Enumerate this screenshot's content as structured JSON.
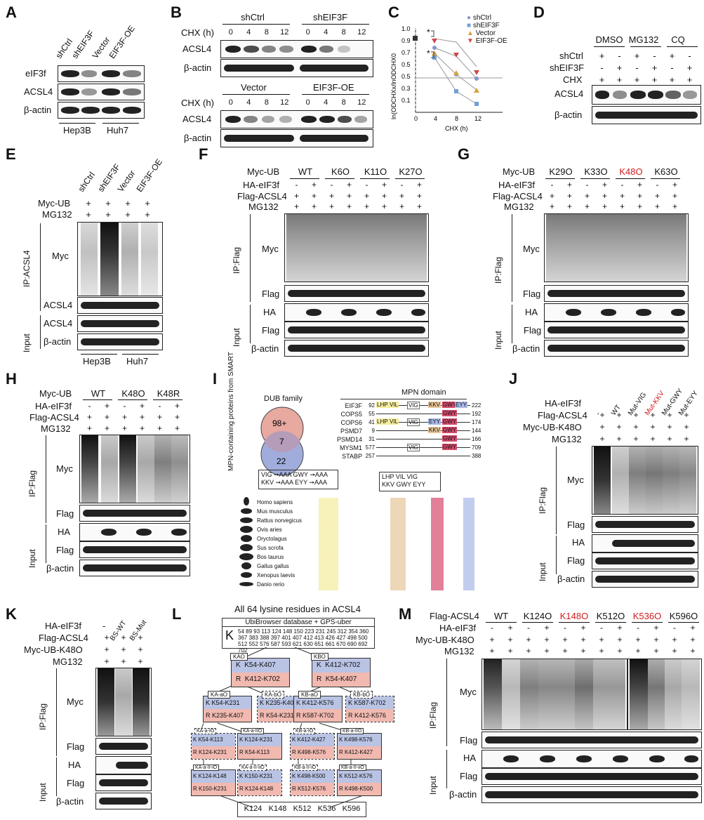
{
  "panels": {
    "A": {
      "label": "A",
      "cols": [
        "shCtrl",
        "shEIF3F",
        "Vector",
        "EIF3F-OE"
      ],
      "rows": [
        "eIF3f",
        "ACSL4",
        "β-actin"
      ],
      "groups": [
        "Hep3B",
        "Huh7"
      ]
    },
    "B": {
      "label": "B",
      "top_groups": [
        "shCtrl",
        "shEIF3F"
      ],
      "bottom_groups": [
        "Vector",
        "EIF3F-OE"
      ],
      "cond_label": "CHX (h)",
      "times": [
        "0",
        "4",
        "8",
        "12"
      ],
      "rows": [
        "ACSL4",
        "β-actin"
      ]
    },
    "C": {
      "label": "C",
      "ylabel": "ln(ODCHXx/lnODCHX0",
      "xlabel": "CHX (h)",
      "legend": [
        "shCtrl",
        "shEIF3F",
        "Vector",
        "EIF3F-OE"
      ],
      "star": "*"
    },
    "D": {
      "label": "D",
      "conds": [
        "DMSO",
        "MG132",
        "CQ"
      ],
      "row_labels": [
        "shCtrl",
        "shEIF3F",
        "CHX"
      ],
      "signs": [
        [
          "+",
          "-",
          "+",
          "-",
          "+",
          "-"
        ],
        [
          "-",
          "+",
          "-",
          "+",
          "-",
          "+"
        ],
        [
          "+",
          "+",
          "+",
          "+",
          "+",
          "+"
        ]
      ],
      "rows": [
        "ACSL4",
        "β-actin"
      ]
    },
    "E": {
      "label": "E",
      "cols": [
        "shCtrl",
        "shEIF3F",
        "Vector",
        "EIF3F-OE"
      ],
      "row_labels": [
        "Myc-UB",
        "MG132"
      ],
      "plus": "+",
      "ip": "IP:ACSL4",
      "input": "Input",
      "rows": [
        "Myc",
        "ACSL4",
        "ACSL4",
        "β-actin"
      ],
      "groups": [
        "Hep3B",
        "Huh7"
      ]
    },
    "F": {
      "label": "F",
      "groups": [
        "WT",
        "K6O",
        "K11O",
        "K27O"
      ],
      "row_labels": [
        "Myc-UB",
        "HA-eIF3f",
        "Flag-ACSL4",
        "MG132"
      ],
      "ip": "IP:Flag",
      "input": "Input",
      "rows": [
        "Myc",
        "Flag",
        "HA",
        "Flag",
        "β-actin"
      ]
    },
    "G": {
      "label": "G",
      "groups": [
        "K29O",
        "K33O",
        "K48O",
        "K63O"
      ],
      "row_labels": [
        "Myc-UB",
        "HA-eIF3f",
        "Flag-ACSL4",
        "MG132"
      ],
      "ip": "IP:Flag",
      "input": "Input",
      "rows": [
        "Myc",
        "Flag",
        "HA",
        "Flag",
        "β-actin"
      ]
    },
    "H": {
      "label": "H",
      "groups": [
        "WT",
        "K48O",
        "K48R"
      ],
      "row_labels": [
        "Myc-UB",
        "HA-eIF3f",
        "Flag-ACSL4",
        "MG132"
      ],
      "ip": "IP:Flag",
      "input": "Input",
      "rows": [
        "Myc",
        "Flag",
        "HA",
        "Flag",
        "β-actin"
      ]
    },
    "I": {
      "label": "I",
      "venn_title": "DUB family",
      "venn_side": "MPN-containing proteins from SMART",
      "venn_values": [
        "98+",
        "7",
        "22"
      ],
      "domain_title": "MPN domain",
      "proteins": [
        "EIF3F",
        "COPS5",
        "COPS6",
        "PSMD7",
        "PSMD14",
        "MYSM1",
        "STABP"
      ],
      "starts": [
        "92",
        "55",
        "41",
        "9",
        "31",
        "577",
        "257"
      ],
      "ends": [
        "222",
        "192",
        "174",
        "144",
        "166",
        "709",
        "388"
      ],
      "motifs": [
        "LHP",
        "VIL",
        "VIG",
        "KKV",
        "GWY",
        "EYY"
      ],
      "mut_box": [
        "VIG ➞AAA  GWY ➞AAA",
        "KKV ➞AAA  EYY ➞AAA"
      ],
      "motif_box": [
        "LHP    VIL    VIG",
        "KKV  GWY  EYY"
      ],
      "species": [
        "Homo sapiens",
        "Mus musculus",
        "Rattus norvegicus",
        "Ovis aries",
        "Oryctolagus",
        "Sus scrofa",
        "Bos taurus",
        "Gallus gallus",
        "Xenopus laevis",
        "Danio rerio"
      ]
    },
    "J": {
      "label": "J",
      "cols": [
        "-",
        "WT",
        "Mut-VIG",
        "Mut-KKV",
        "Mut-GWY",
        "Mut-EYY"
      ],
      "row_labels": [
        "HA-eIF3f",
        "Flag-ACSL4",
        "Myc-UB-K48O",
        "MG132"
      ],
      "ip": "IP:Flag",
      "input": "Input",
      "rows": [
        "Myc",
        "Flag",
        "HA",
        "Flag",
        "β-actin"
      ]
    },
    "K": {
      "label": "K",
      "cols": [
        "-",
        "BS-WT",
        "BS-Mut"
      ],
      "row_labels": [
        "HA-eIF3f",
        "Flag-ACSL4",
        "Myc-UB-K48O",
        "MG132"
      ],
      "ip": "IP:Flag",
      "input": "Input",
      "rows": [
        "Myc",
        "Flag",
        "HA",
        "Flag",
        "β-actin"
      ]
    },
    "L": {
      "label": "L",
      "title": "All 64 lysine residues in ACSL4",
      "db": "UbiBrowser database + GPS-uber",
      "k": "K",
      "lys_lines": [
        "54 89 93 113 124 148 150 223 231 245 312 354 360",
        "367 383 388 397 401 407 412 413 426 427 498 500",
        "512 552 576 587 593 621 630 651 661 670 690 692 702"
      ],
      "final": [
        "K124",
        "K148",
        "K512",
        "K536",
        "K596"
      ]
    },
    "M": {
      "label": "M",
      "groups": [
        "WT",
        "K124O",
        "K148O",
        "K512O",
        "K536O",
        "K596O"
      ],
      "row_labels": [
        "Flag-ACSL4",
        "HA-eIF3f",
        "Myc-UB-K48O",
        "MG132"
      ],
      "ip": "IP:Flag",
      "input": "Input",
      "rows": [
        "Myc",
        "Flag",
        "HA",
        "Flag",
        "β-actin"
      ]
    }
  },
  "colors": {
    "red": "#d01c1c",
    "blue": "#5b6db5",
    "venn_red": "#e7a9a0",
    "venn_blue": "#8f9fd6"
  }
}
